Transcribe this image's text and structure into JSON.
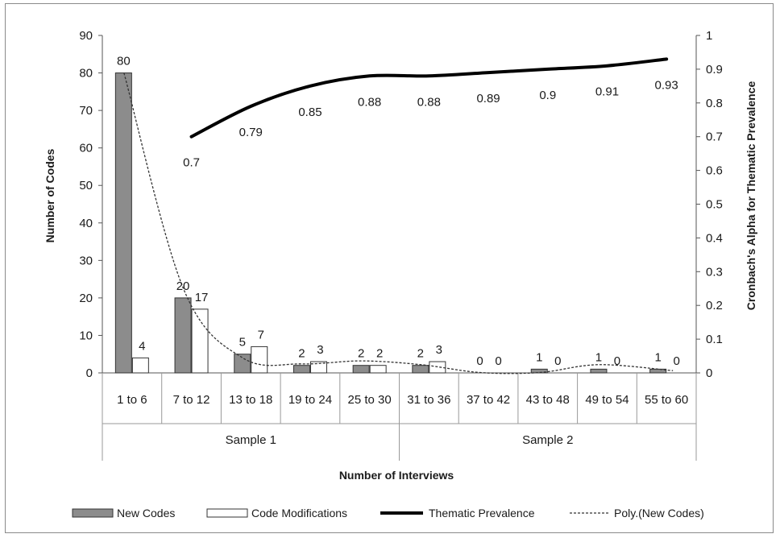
{
  "chart_data": {
    "type": "bar",
    "categories": [
      "1 to 6",
      "7 to 12",
      "13 to 18",
      "19 to 24",
      "25 to 30",
      "31 to 36",
      "37 to 42",
      "43 to 48",
      "49 to 54",
      "55 to 60"
    ],
    "groups": [
      {
        "label": "Sample 1",
        "from": 0,
        "to": 4
      },
      {
        "label": "Sample 2",
        "from": 5,
        "to": 9
      }
    ],
    "series": [
      {
        "name": "New Codes",
        "kind": "bar",
        "axis": "left",
        "color": "#8c8c8c",
        "values": [
          80,
          20,
          5,
          2,
          2,
          2,
          0,
          1,
          1,
          1
        ]
      },
      {
        "name": "Code Modifications",
        "kind": "bar",
        "axis": "left",
        "color": "#ffffff",
        "values": [
          4,
          17,
          7,
          3,
          2,
          3,
          0,
          0,
          0,
          0
        ]
      },
      {
        "name": "Thematic Prevalence",
        "kind": "line",
        "axis": "right",
        "color": "#000000",
        "values": [
          null,
          0.7,
          0.79,
          0.85,
          0.88,
          0.88,
          0.89,
          0.9,
          0.91,
          0.93
        ]
      },
      {
        "name": "Poly.(New Codes)",
        "kind": "trendline",
        "axis": "left",
        "color": "#333333",
        "values": [
          80,
          22.5,
          4,
          2.4,
          3.2,
          2.2,
          0.1,
          0.1,
          2.2,
          0.6
        ]
      }
    ],
    "xlabel": "Number of Interviews",
    "ylabel": "Number of Codes",
    "y2label": "Cronbach's Alpha for Thematic Prevalence",
    "ylim": [
      0,
      90
    ],
    "yticks": [
      0,
      10,
      20,
      30,
      40,
      50,
      60,
      70,
      80,
      90
    ],
    "y2lim": [
      0,
      1
    ],
    "y2ticks": [
      "0",
      "0.1",
      "0.2",
      "0.3",
      "0.4",
      "0.5",
      "0.6",
      "0.7",
      "0.8",
      "0.9",
      "1"
    ],
    "grid": false,
    "legend_position": "bottom"
  }
}
